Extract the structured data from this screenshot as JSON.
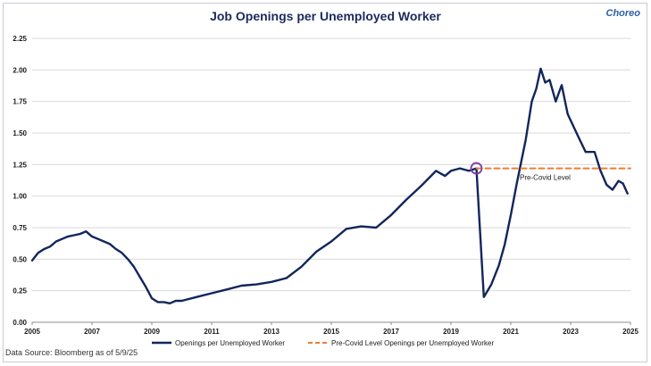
{
  "title": "Job Openings per Unemployed Worker",
  "brand": "Choreo",
  "source_note": "Data Source: Bloomberg as of 5/9/25",
  "colors": {
    "series": "#12265c",
    "reference": "#ed7d31",
    "marker": "#7a3fa0",
    "grid": "#d9d9d9"
  },
  "chart_data": {
    "type": "line",
    "xlim": [
      2005,
      2025
    ],
    "ylim": [
      0,
      2.25
    ],
    "x_ticks": [
      "2005",
      "2007",
      "2009",
      "2011",
      "2013",
      "2015",
      "2017",
      "2019",
      "2021",
      "2023",
      "2025"
    ],
    "y_ticks": [
      "0.00",
      "0.25",
      "0.50",
      "0.75",
      "1.00",
      "1.25",
      "1.50",
      "1.75",
      "2.00",
      "2.25"
    ],
    "grid": true,
    "legend_placement": "bottom",
    "annotations": [
      {
        "text": "Pre-Covid Level",
        "x": 2021.3,
        "y": 1.15
      }
    ],
    "marker": {
      "x": 2019.85,
      "y": 1.22
    },
    "series": [
      {
        "name": "Openings per Unemployed Worker",
        "style": "solid",
        "x": [
          2005.0,
          2005.2,
          2005.4,
          2005.6,
          2005.8,
          2006.0,
          2006.2,
          2006.4,
          2006.6,
          2006.8,
          2007.0,
          2007.2,
          2007.4,
          2007.6,
          2007.8,
          2008.0,
          2008.2,
          2008.4,
          2008.6,
          2008.8,
          2009.0,
          2009.2,
          2009.4,
          2009.6,
          2009.8,
          2010.0,
          2010.5,
          2011.0,
          2011.5,
          2012.0,
          2012.5,
          2013.0,
          2013.5,
          2014.0,
          2014.5,
          2015.0,
          2015.5,
          2016.0,
          2016.5,
          2017.0,
          2017.5,
          2018.0,
          2018.5,
          2018.8,
          2019.0,
          2019.3,
          2019.6,
          2019.85,
          2020.1,
          2020.2,
          2020.35,
          2020.6,
          2020.8,
          2021.0,
          2021.2,
          2021.5,
          2021.7,
          2021.85,
          2022.0,
          2022.15,
          2022.3,
          2022.5,
          2022.7,
          2022.9,
          2023.1,
          2023.3,
          2023.5,
          2023.8,
          2024.0,
          2024.2,
          2024.4,
          2024.6,
          2024.75,
          2024.9
        ],
        "y": [
          0.49,
          0.55,
          0.58,
          0.6,
          0.64,
          0.66,
          0.68,
          0.69,
          0.7,
          0.72,
          0.68,
          0.66,
          0.64,
          0.62,
          0.58,
          0.55,
          0.5,
          0.44,
          0.36,
          0.28,
          0.19,
          0.16,
          0.16,
          0.15,
          0.17,
          0.17,
          0.2,
          0.23,
          0.26,
          0.29,
          0.3,
          0.32,
          0.35,
          0.44,
          0.56,
          0.64,
          0.74,
          0.76,
          0.75,
          0.85,
          0.97,
          1.08,
          1.2,
          1.16,
          1.2,
          1.22,
          1.2,
          1.22,
          0.2,
          0.24,
          0.3,
          0.45,
          0.62,
          0.85,
          1.1,
          1.45,
          1.75,
          1.85,
          2.01,
          1.9,
          1.92,
          1.75,
          1.88,
          1.65,
          1.55,
          1.45,
          1.35,
          1.35,
          1.2,
          1.09,
          1.05,
          1.12,
          1.1,
          1.02
        ]
      },
      {
        "name": "Pre-Covid Level Openings per Unemployed Worker",
        "style": "dashed",
        "x": [
          2019.85,
          2025.0
        ],
        "y": [
          1.22,
          1.22
        ]
      }
    ]
  }
}
